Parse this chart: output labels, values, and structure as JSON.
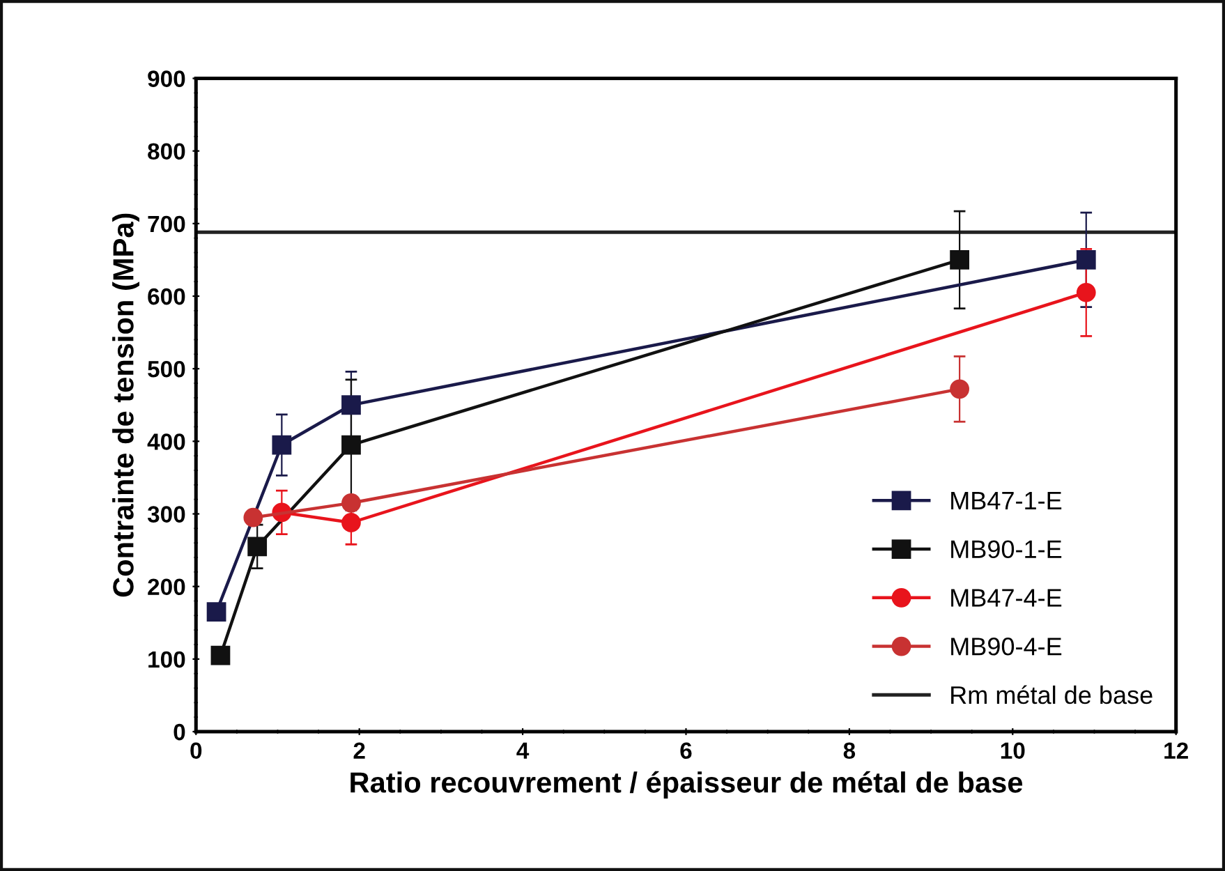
{
  "chart_data": {
    "type": "line",
    "xlabel": "Ratio recouvrement / épaisseur de métal de base",
    "ylabel": "Contrainte de tension (MPa)",
    "xlim": [
      0,
      12
    ],
    "xticks": [
      0,
      2,
      4,
      6,
      8,
      10,
      12
    ],
    "ylim": [
      0,
      900
    ],
    "yticks": [
      0,
      100,
      200,
      300,
      400,
      500,
      600,
      700,
      800,
      900
    ],
    "grid": false,
    "legend": "bottom right",
    "series": [
      {
        "name": "MB47-1-E",
        "color": "#1a1a4a",
        "marker": "square",
        "x": [
          0.25,
          1.05,
          1.9,
          10.9
        ],
        "values": [
          165,
          395,
          450,
          650
        ],
        "errors": [
          null,
          42,
          46,
          65
        ]
      },
      {
        "name": "MB90-1-E",
        "color": "#111111",
        "marker": "square",
        "x": [
          0.3,
          0.75,
          1.9,
          9.35
        ],
        "values": [
          105,
          255,
          395,
          650
        ],
        "errors": [
          null,
          30,
          90,
          67
        ]
      },
      {
        "name": "MB47-4-E",
        "color": "#e8141c",
        "marker": "circle",
        "x": [
          1.05,
          1.9,
          10.9
        ],
        "values": [
          302,
          288,
          605
        ],
        "errors": [
          30,
          30,
          60
        ]
      },
      {
        "name": "MB90-4-E",
        "color": "#c83232",
        "marker": "circle",
        "x": [
          0.7,
          1.9,
          9.35
        ],
        "values": [
          295,
          315,
          472
        ],
        "errors": [
          null,
          null,
          45
        ]
      }
    ],
    "ref_lines": [
      {
        "axis": "y",
        "value": 688,
        "label": "Rm métal de base",
        "color": "#222222"
      }
    ]
  }
}
